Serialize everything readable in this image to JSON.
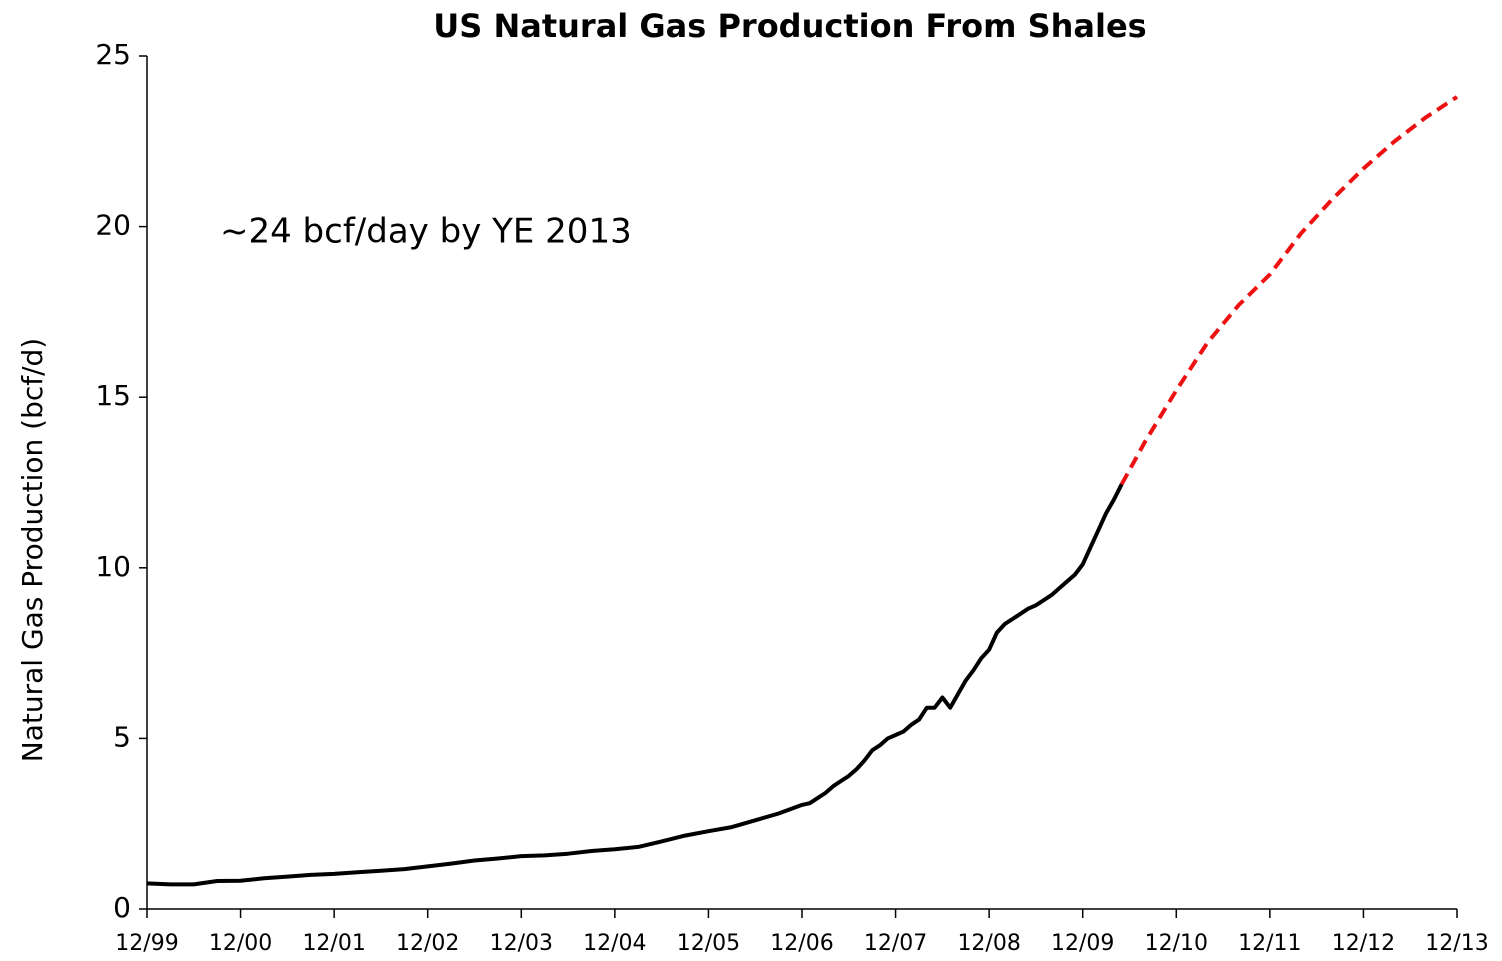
{
  "chart_data": {
    "type": "line",
    "title": "US Natural Gas Production From Shales",
    "ylabel": "Natural Gas Production (bcf/d)",
    "annotation": "~24 bcf/day by YE 2013",
    "xlim": [
      "1999-12",
      "2013-12"
    ],
    "xticks": [
      {
        "value": "1999-12",
        "label": "12/99"
      },
      {
        "value": "2000-12",
        "label": "12/00"
      },
      {
        "value": "2001-12",
        "label": "12/01"
      },
      {
        "value": "2002-12",
        "label": "12/02"
      },
      {
        "value": "2003-12",
        "label": "12/03"
      },
      {
        "value": "2004-12",
        "label": "12/04"
      },
      {
        "value": "2005-12",
        "label": "12/05"
      },
      {
        "value": "2006-12",
        "label": "12/06"
      },
      {
        "value": "2007-12",
        "label": "12/07"
      },
      {
        "value": "2008-12",
        "label": "12/08"
      },
      {
        "value": "2009-12",
        "label": "12/09"
      },
      {
        "value": "2010-12",
        "label": "12/10"
      },
      {
        "value": "2011-12",
        "label": "12/11"
      },
      {
        "value": "2012-12",
        "label": "12/12"
      },
      {
        "value": "2013-12",
        "label": "12/13"
      }
    ],
    "ylim": [
      0,
      25
    ],
    "yticks": [
      0,
      5,
      10,
      15,
      20,
      25
    ],
    "grid": false,
    "series": [
      {
        "color": "#000000",
        "line_style": "solid",
        "x": [
          "1999-12",
          "2000-03",
          "2000-06",
          "2000-09",
          "2000-12",
          "2001-03",
          "2001-06",
          "2001-09",
          "2001-12",
          "2002-03",
          "2002-06",
          "2002-09",
          "2002-12",
          "2003-03",
          "2003-06",
          "2003-09",
          "2003-12",
          "2004-03",
          "2004-06",
          "2004-09",
          "2004-12",
          "2005-03",
          "2005-06",
          "2005-09",
          "2005-12",
          "2006-03",
          "2006-06",
          "2006-09",
          "2006-12",
          "2007-01",
          "2007-02",
          "2007-03",
          "2007-04",
          "2007-05",
          "2007-06",
          "2007-07",
          "2007-08",
          "2007-09",
          "2007-10",
          "2007-11",
          "2007-12",
          "2008-01",
          "2008-02",
          "2008-03",
          "2008-04",
          "2008-05",
          "2008-06",
          "2008-07",
          "2008-08",
          "2008-09",
          "2008-10",
          "2008-11",
          "2008-12",
          "2009-01",
          "2009-02",
          "2009-03",
          "2009-04",
          "2009-05",
          "2009-06",
          "2009-07",
          "2009-08",
          "2009-09",
          "2009-10",
          "2009-11",
          "2009-12",
          "2010-01",
          "2010-02",
          "2010-03",
          "2010-04",
          "2010-05"
        ],
        "values": [
          0.75,
          0.72,
          0.72,
          0.82,
          0.83,
          0.9,
          0.95,
          1.0,
          1.03,
          1.08,
          1.12,
          1.17,
          1.25,
          1.33,
          1.42,
          1.48,
          1.55,
          1.57,
          1.62,
          1.7,
          1.75,
          1.82,
          1.98,
          2.15,
          2.28,
          2.4,
          2.6,
          2.8,
          3.05,
          3.1,
          3.25,
          3.4,
          3.6,
          3.75,
          3.9,
          4.1,
          4.35,
          4.65,
          4.8,
          5.0,
          5.1,
          5.2,
          5.4,
          5.55,
          5.9,
          5.9,
          6.2,
          5.9,
          6.3,
          6.7,
          7.0,
          7.35,
          7.6,
          8.1,
          8.35,
          8.5,
          8.65,
          8.8,
          8.9,
          9.05,
          9.2,
          9.4,
          9.6,
          9.8,
          10.1,
          10.6,
          11.1,
          11.6,
          12.0,
          12.45
        ]
      },
      {
        "color": "#ee1111",
        "line_style": "dashed",
        "x": [
          "2010-05",
          "2010-08",
          "2010-12",
          "2011-04",
          "2011-08",
          "2011-12",
          "2012-04",
          "2012-08",
          "2012-12",
          "2013-04",
          "2013-08",
          "2013-12"
        ],
        "values": [
          12.45,
          13.7,
          15.2,
          16.6,
          17.7,
          18.6,
          19.8,
          20.8,
          21.7,
          22.5,
          23.2,
          23.8
        ]
      }
    ]
  }
}
